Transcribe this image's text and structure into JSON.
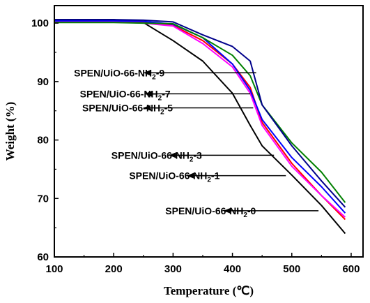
{
  "chart_data": {
    "type": "line",
    "xlabel": "Temperature (℃)",
    "ylabel": "Weight (%)",
    "xlim": [
      100,
      620
    ],
    "ylim": [
      60,
      103
    ],
    "xticks": [
      100,
      200,
      300,
      400,
      500,
      600
    ],
    "yticks": [
      60,
      70,
      80,
      90,
      100
    ],
    "grid": false,
    "series": [
      {
        "color": "#000000",
        "x": [
          100,
          200,
          250,
          300,
          350,
          400,
          430,
          450,
          500,
          550,
          590
        ],
        "y": [
          100.6,
          100.6,
          100.1,
          97.0,
          93.5,
          88.0,
          82.5,
          79.0,
          74.0,
          68.8,
          64.0
        ]
      },
      {
        "color": "#ff0000",
        "x": [
          100,
          200,
          250,
          300,
          350,
          400,
          430,
          450,
          500,
          550,
          590
        ],
        "y": [
          100.4,
          100.4,
          100.2,
          99.6,
          97.0,
          93.0,
          89.0,
          83.0,
          76.0,
          70.5,
          66.4
        ]
      },
      {
        "color": "#ff00ff",
        "x": [
          100,
          200,
          250,
          300,
          350,
          400,
          430,
          450,
          500,
          550,
          590
        ],
        "y": [
          100.2,
          100.2,
          100.0,
          99.5,
          96.5,
          92.5,
          88.0,
          82.5,
          75.5,
          70.5,
          66.8
        ]
      },
      {
        "color": "#0000ff",
        "x": [
          100,
          200,
          250,
          300,
          350,
          400,
          430,
          450,
          500,
          550,
          590
        ],
        "y": [
          100.4,
          100.4,
          100.3,
          99.8,
          97.5,
          93.0,
          88.5,
          83.5,
          77.0,
          72.0,
          67.5
        ]
      },
      {
        "color": "#008000",
        "x": [
          100,
          200,
          250,
          300,
          350,
          400,
          430,
          450,
          500,
          550,
          590
        ],
        "y": [
          100.1,
          100.1,
          100.0,
          99.9,
          97.5,
          94.5,
          91.0,
          86.0,
          79.5,
          74.5,
          69.3
        ]
      },
      {
        "color": "#00008b",
        "x": [
          100,
          200,
          250,
          300,
          350,
          400,
          430,
          450,
          500,
          550,
          590
        ],
        "y": [
          100.6,
          100.6,
          100.5,
          100.2,
          98.0,
          96.0,
          93.5,
          86.0,
          79.0,
          73.0,
          68.5
        ]
      }
    ],
    "annotations": [
      {
        "pre": "SPEN/UiO-66-NH",
        "sub": "2",
        "post": "-9",
        "x_text": 133,
        "y_text": 91.5,
        "arrow_from": 250,
        "arrow_to": 440
      },
      {
        "pre": "SPEN/UiO-66-NH",
        "sub": "2",
        "post": "-7",
        "x_text": 143,
        "y_text": 87.9,
        "arrow_from": 252,
        "arrow_to": 430
      },
      {
        "pre": "SPEN/UiO-66-NH",
        "sub": "2",
        "post": "-5",
        "x_text": 147,
        "y_text": 85.5,
        "arrow_from": 250,
        "arrow_to": 435
      },
      {
        "pre": "SPEN/UiO-66-NH",
        "sub": "2",
        "post": "-3",
        "x_text": 196,
        "y_text": 77.4,
        "arrow_from": 293,
        "arrow_to": 470
      },
      {
        "pre": "SPEN/UiO-66-NH",
        "sub": "2",
        "post": "-1",
        "x_text": 226,
        "y_text": 73.9,
        "arrow_from": 323,
        "arrow_to": 490
      },
      {
        "pre": "SPEN/UiO-66-NH",
        "sub": "2",
        "post": "-0",
        "x_text": 287,
        "y_text": 67.9,
        "arrow_from": 385,
        "arrow_to": 545
      }
    ]
  }
}
